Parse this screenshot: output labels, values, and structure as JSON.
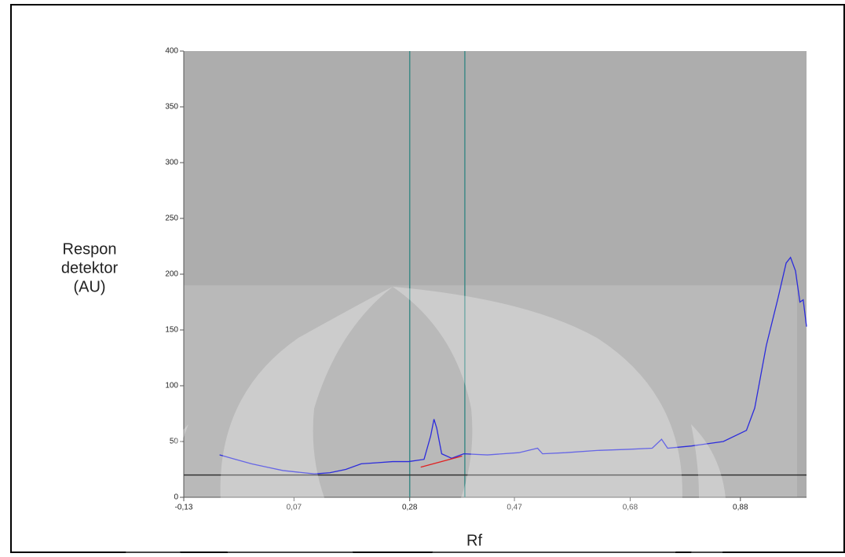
{
  "chart_data": {
    "type": "line",
    "ylabel": [
      "Respon",
      "detektor",
      "(AU)"
    ],
    "xlabel": "Rf",
    "xlim": [
      -0.13,
      1.0
    ],
    "ylim": [
      0,
      400
    ],
    "xticks": [
      {
        "value": -0.13,
        "label": "-0,13"
      },
      {
        "value": 0.07,
        "label": "0,07"
      },
      {
        "value": 0.28,
        "label": "0,28"
      },
      {
        "value": 0.47,
        "label": "0,47"
      },
      {
        "value": 0.68,
        "label": "0,68"
      },
      {
        "value": 0.88,
        "label": "0,88"
      }
    ],
    "yticks": [
      0,
      50,
      100,
      150,
      200,
      250,
      300,
      350,
      400
    ],
    "markers": [
      {
        "x": 0.28,
        "color": "#3f8a86"
      },
      {
        "x": 0.38,
        "color": "#3f8a86"
      }
    ],
    "baseline": {
      "y": 20,
      "color": "#333333"
    },
    "series": [
      {
        "color": "#2b2bdc",
        "x": [
          -0.065,
          -0.036,
          -0.007,
          0.021,
          0.05,
          0.078,
          0.107,
          0.135,
          0.164,
          0.192,
          0.221,
          0.249,
          0.278,
          0.306,
          0.318,
          0.324,
          0.329,
          0.338,
          0.356,
          0.378,
          0.421,
          0.478,
          0.512,
          0.521,
          0.563,
          0.62,
          0.677,
          0.72,
          0.737,
          0.748,
          0.791,
          0.849,
          0.891,
          0.906,
          0.927,
          0.948,
          0.963,
          0.971,
          0.98,
          0.988,
          0.994,
          1.0
        ],
        "values": [
          38,
          34,
          30,
          27,
          24,
          22.5,
          21,
          22,
          25,
          30,
          31,
          32,
          32,
          34,
          55,
          70,
          62,
          39,
          35,
          39,
          38,
          40,
          44,
          39,
          40,
          42,
          43,
          44,
          52,
          44,
          46,
          50,
          60,
          80,
          136,
          178,
          210,
          215,
          203,
          175,
          177,
          153
        ]
      },
      {
        "color": "#e02020",
        "x": [
          0.3,
          0.375
        ],
        "values": [
          27,
          37
        ]
      }
    ]
  }
}
